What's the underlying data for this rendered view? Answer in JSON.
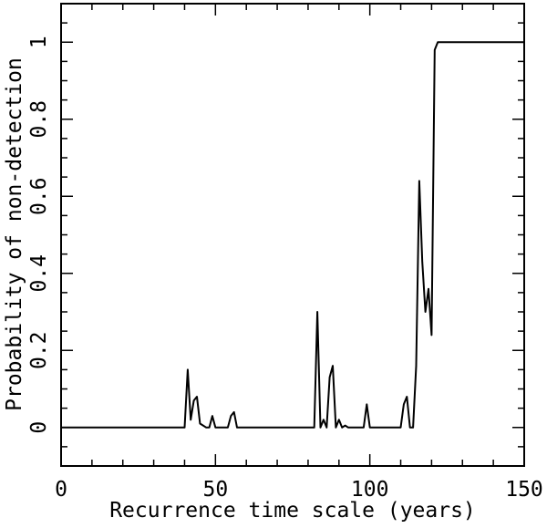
{
  "chart_data": {
    "type": "line",
    "title": "",
    "xlabel": "Recurrence time scale (years)",
    "ylabel": "Probability of non-detection",
    "xlim": [
      0,
      150
    ],
    "ylim": [
      -0.1,
      1.1
    ],
    "x_ticks": [
      0,
      50,
      100,
      150
    ],
    "x_tick_labels": [
      "0",
      "50",
      "100",
      "150"
    ],
    "y_ticks": [
      0,
      0.2,
      0.4,
      0.6,
      0.8,
      1
    ],
    "y_tick_labels": [
      "0",
      "0.2",
      "0.4",
      "0.6",
      "0.8",
      "1"
    ],
    "grid": false,
    "series": [
      {
        "color": "#000000",
        "x": [
          0,
          40,
          41,
          42,
          43,
          44,
          45,
          46,
          47,
          48,
          49,
          50,
          51,
          54,
          55,
          56,
          57,
          58,
          82,
          83,
          84,
          85,
          86,
          87,
          88,
          89,
          90,
          91,
          92,
          93,
          98,
          99,
          100,
          110,
          111,
          112,
          113,
          114,
          115,
          116,
          117,
          118,
          119,
          120,
          121,
          122,
          150
        ],
        "y": [
          0,
          0,
          0.15,
          0.02,
          0.07,
          0.08,
          0.01,
          0.005,
          0.0,
          0.0,
          0.03,
          0.0,
          0.0,
          0.0,
          0.03,
          0.04,
          0.0,
          0.0,
          0.0,
          0.3,
          0.0,
          0.02,
          0.0,
          0.13,
          0.16,
          0.0,
          0.02,
          0.0,
          0.005,
          0.0,
          0.0,
          0.06,
          0.0,
          0.0,
          0.06,
          0.08,
          0.0,
          0.0,
          0.16,
          0.64,
          0.43,
          0.3,
          0.36,
          0.24,
          0.98,
          1.0,
          1.0
        ]
      }
    ]
  }
}
